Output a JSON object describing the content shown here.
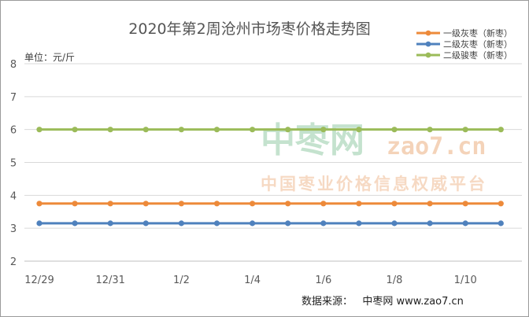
{
  "chart_data": {
    "type": "line",
    "title": "2020年第2周沧州市场枣价格走势图",
    "ylabel": "单位：元/斤",
    "xlabel": "",
    "ylim": [
      2,
      8
    ],
    "yticks": [
      2,
      3,
      4,
      5,
      6,
      7,
      8
    ],
    "x_tick_labels": [
      "12/29",
      "12/31",
      "1/2",
      "1/4",
      "1/6",
      "1/8",
      "1/10"
    ],
    "x": [
      "12/29",
      "12/30",
      "12/31",
      "1/1",
      "1/2",
      "1/3",
      "1/4",
      "1/5",
      "1/6",
      "1/7",
      "1/8",
      "1/9",
      "1/10",
      "1/11"
    ],
    "grid": "horizontal",
    "legend_position": "top-right",
    "series": [
      {
        "name": "一级灰枣（新枣）",
        "color": "#ed8a3a",
        "values": [
          3.75,
          3.75,
          3.75,
          3.75,
          3.75,
          3.75,
          3.75,
          3.75,
          3.75,
          3.75,
          3.75,
          3.75,
          3.75,
          3.75
        ]
      },
      {
        "name": "二级灰枣（新枣）",
        "color": "#4f81bd",
        "values": [
          3.15,
          3.15,
          3.15,
          3.15,
          3.15,
          3.15,
          3.15,
          3.15,
          3.15,
          3.15,
          3.15,
          3.15,
          3.15,
          3.15
        ]
      },
      {
        "name": "二级骏枣（新枣）",
        "color": "#9bbb59",
        "values": [
          6.0,
          6.0,
          6.0,
          6.0,
          6.0,
          6.0,
          6.0,
          6.0,
          6.0,
          6.0,
          6.0,
          6.0,
          6.0,
          6.0
        ]
      }
    ]
  },
  "watermark": {
    "brand": "中枣网",
    "url": "zao7.cn",
    "slogan": "中国枣业价格信息权威平台"
  },
  "source": {
    "text": "数据来源：   中枣网 www.zao7.cn"
  }
}
